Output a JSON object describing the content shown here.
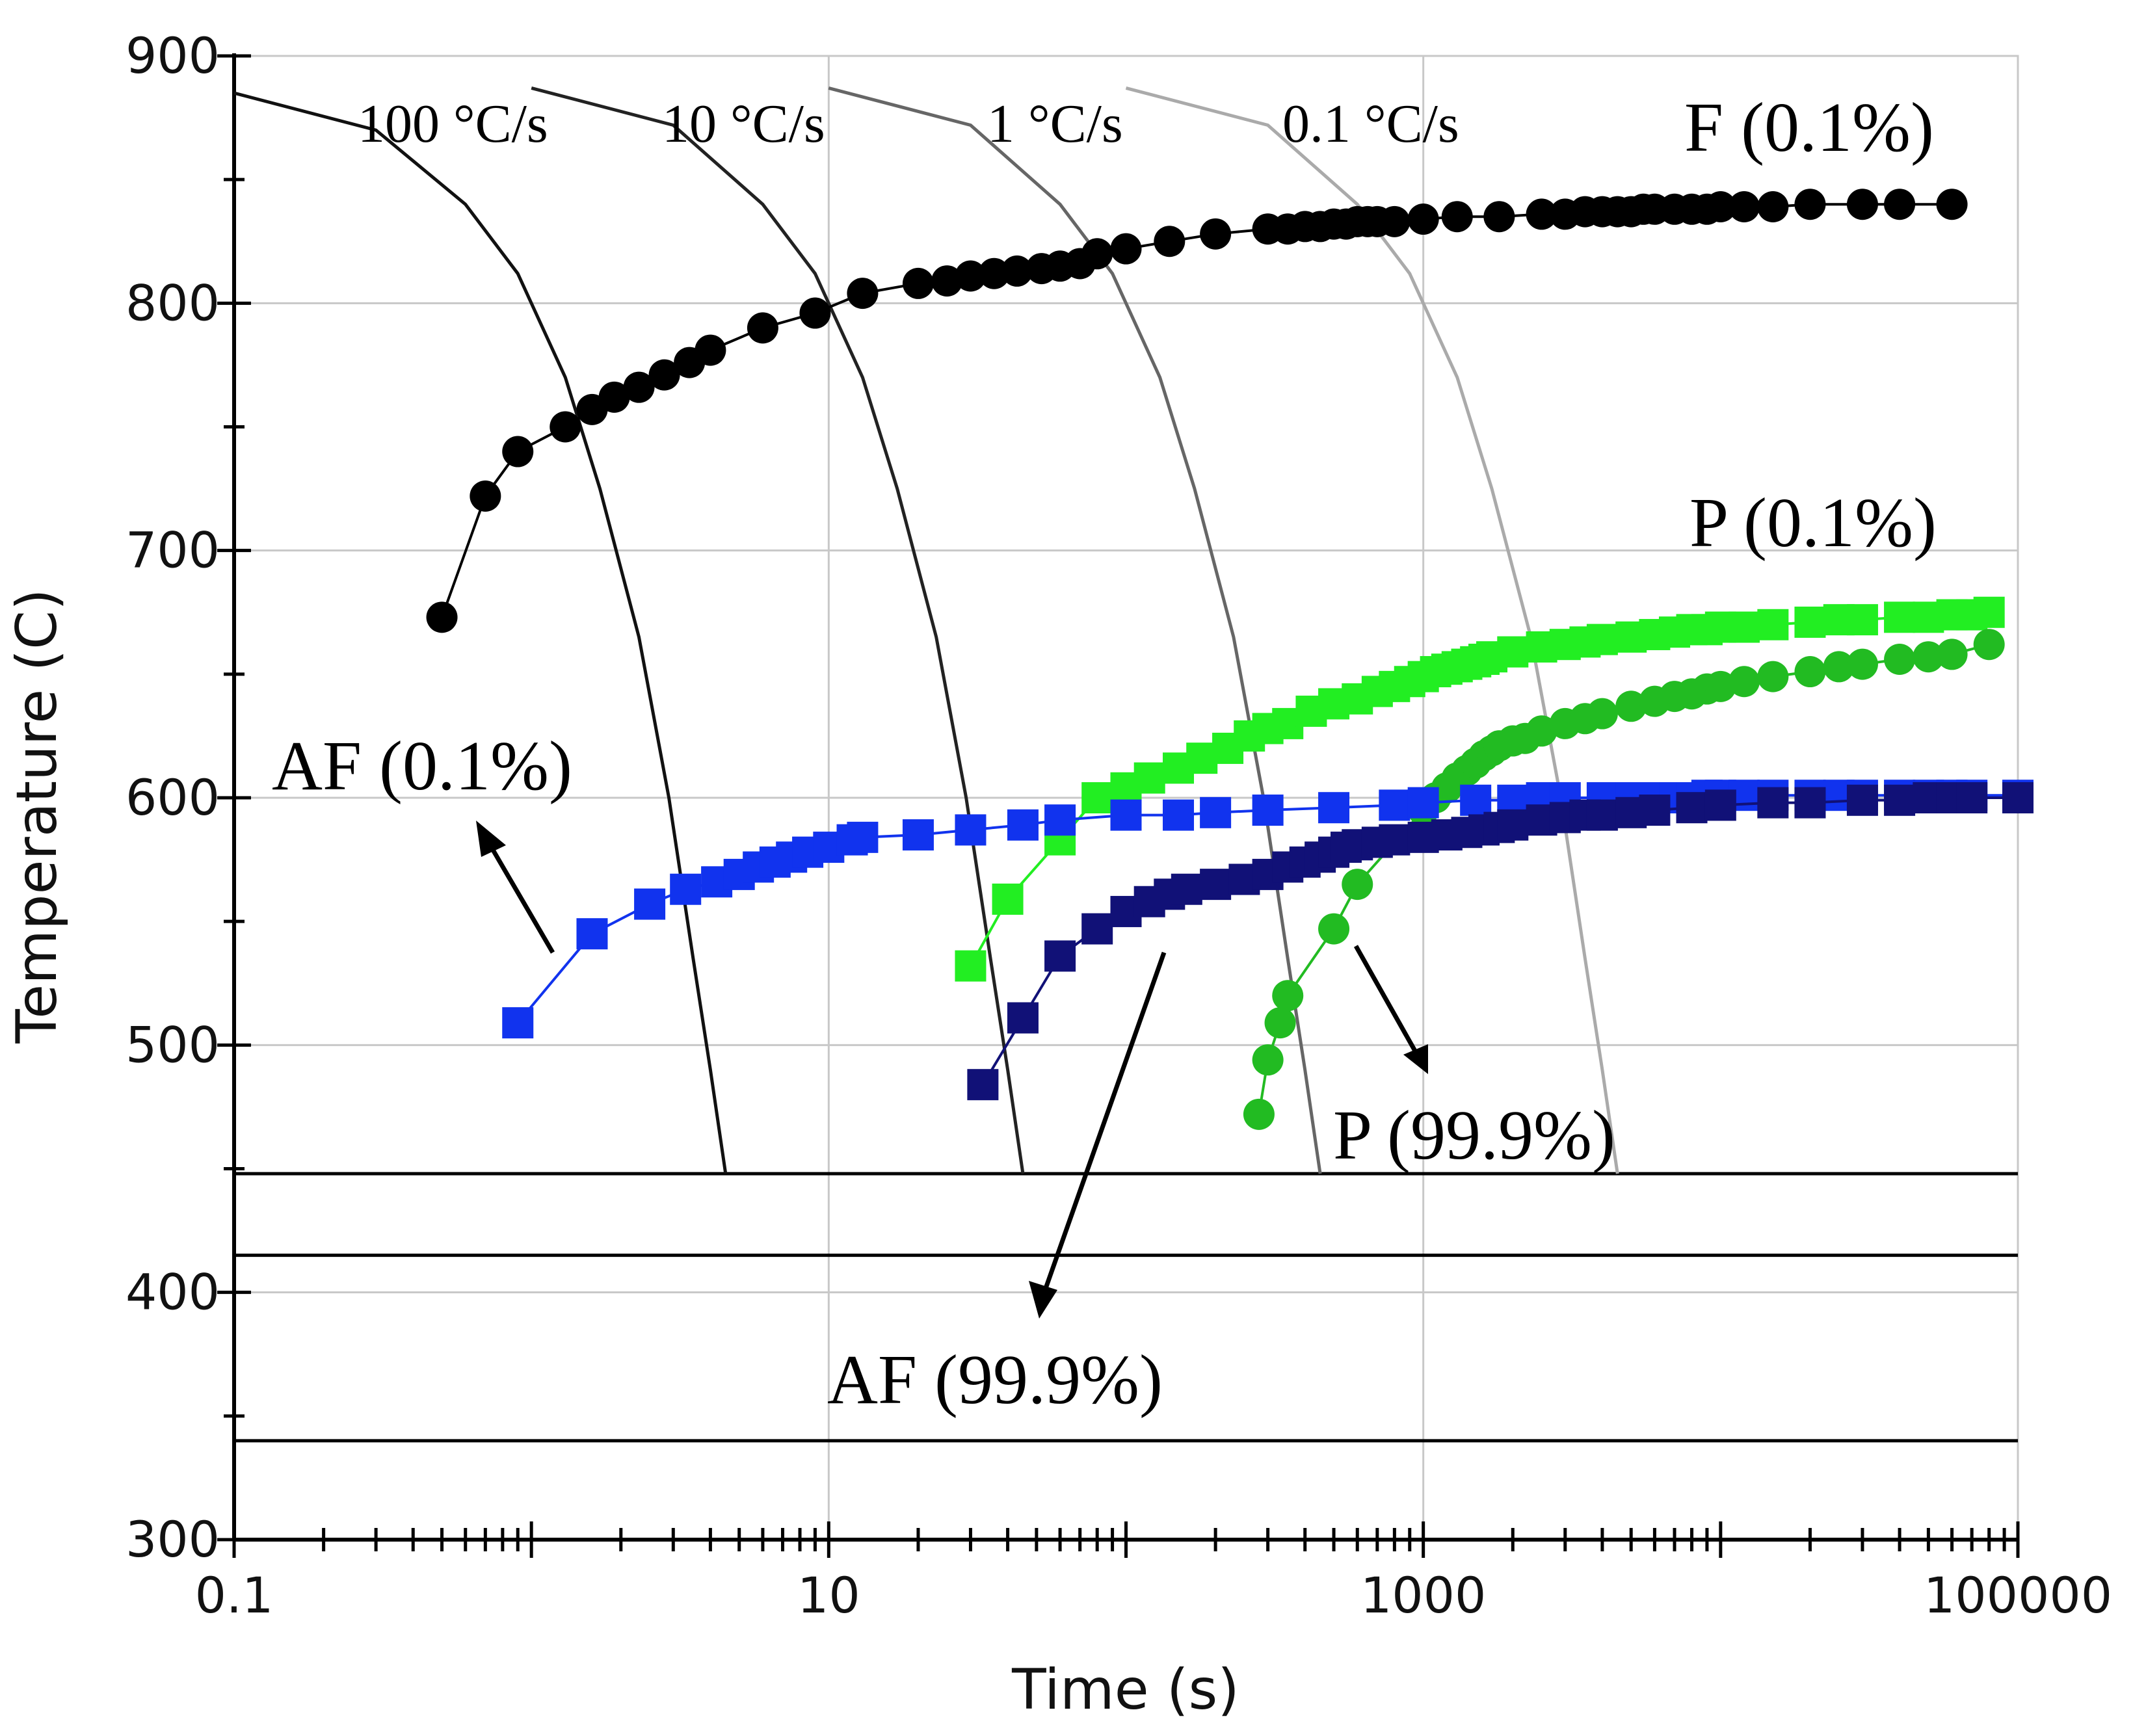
{
  "chart_data": {
    "type": "line",
    "title": "",
    "xlabel": "Time (s)",
    "ylabel": "Temperature (C)",
    "xscale": "log",
    "xlim": [
      0.1,
      100000
    ],
    "ylim": [
      300,
      900
    ],
    "grid": true,
    "xticks": [
      {
        "value": 0.1,
        "label": "0.1"
      },
      {
        "value": 10,
        "label": "10"
      },
      {
        "value": 1000,
        "label": "1000"
      },
      {
        "value": 100000,
        "label": "100000"
      }
    ],
    "yticks": [
      {
        "value": 300,
        "label": "300"
      },
      {
        "value": 400,
        "label": "400"
      },
      {
        "value": 500,
        "label": "500"
      },
      {
        "value": 600,
        "label": "600"
      },
      {
        "value": 700,
        "label": "700"
      },
      {
        "value": 800,
        "label": "800"
      },
      {
        "value": 900,
        "label": "900"
      }
    ],
    "reference_lines": [
      {
        "name": "temperature-line-448",
        "y": 448
      },
      {
        "name": "temperature-line-415",
        "y": 415
      },
      {
        "name": "temperature-line-340",
        "y": 340
      }
    ],
    "cooling_curves": [
      {
        "name": "100 °C/s",
        "color": "#111111",
        "points": [
          [
            0.1,
            885
          ],
          [
            0.3,
            870
          ],
          [
            0.6,
            840
          ],
          [
            0.9,
            812
          ],
          [
            1.3,
            770
          ],
          [
            1.7,
            725
          ],
          [
            2.3,
            665
          ],
          [
            2.9,
            600
          ],
          [
            3.5,
            535
          ],
          [
            4.0,
            490
          ],
          [
            4.5,
            448
          ]
        ]
      },
      {
        "name": "10 °C/s",
        "color": "#222222",
        "points": [
          [
            1,
            887
          ],
          [
            3,
            872
          ],
          [
            6,
            840
          ],
          [
            9,
            812
          ],
          [
            13,
            770
          ],
          [
            17,
            725
          ],
          [
            23,
            665
          ],
          [
            29,
            600
          ],
          [
            35,
            535
          ],
          [
            40,
            490
          ],
          [
            45,
            448
          ]
        ]
      },
      {
        "name": "1 °C/s",
        "color": "#666666",
        "points": [
          [
            10,
            887
          ],
          [
            30,
            872
          ],
          [
            60,
            840
          ],
          [
            90,
            812
          ],
          [
            130,
            770
          ],
          [
            170,
            725
          ],
          [
            230,
            665
          ],
          [
            290,
            600
          ],
          [
            350,
            535
          ],
          [
            400,
            490
          ],
          [
            450,
            448
          ]
        ]
      },
      {
        "name": "0.1 °C/s",
        "color": "#aaaaaa",
        "points": [
          [
            100,
            887
          ],
          [
            300,
            872
          ],
          [
            600,
            840
          ],
          [
            900,
            812
          ],
          [
            1300,
            770
          ],
          [
            1700,
            725
          ],
          [
            2300,
            665
          ],
          [
            2900,
            600
          ],
          [
            3500,
            535
          ],
          [
            4000,
            490
          ],
          [
            4500,
            448
          ]
        ]
      }
    ],
    "series": [
      {
        "name": "F (0.1%)",
        "color": "#000000",
        "marker": "circle",
        "x": [
          0.5,
          0.7,
          0.9,
          1.3,
          1.6,
          1.9,
          2.3,
          2.8,
          3.4,
          4,
          6,
          9,
          13,
          20,
          25,
          30,
          36,
          43,
          52,
          60,
          70,
          80,
          100,
          140,
          200,
          300,
          350,
          400,
          450,
          500,
          550,
          600,
          650,
          700,
          800,
          1000,
          1300,
          1800,
          2500,
          3000,
          3500,
          4000,
          4500,
          5000,
          5500,
          6000,
          7000,
          8000,
          9000,
          10000,
          12000,
          15000,
          20000,
          30000,
          40000,
          60000
        ],
        "y": [
          673,
          722,
          740,
          750,
          757,
          762,
          766,
          771,
          776,
          781,
          790,
          796,
          804,
          808,
          809,
          811,
          812,
          813,
          814,
          815,
          816,
          820,
          822,
          825,
          828,
          830,
          830,
          831,
          831,
          832,
          832,
          833,
          833,
          833,
          833,
          834,
          835,
          835,
          836,
          836,
          837,
          837,
          837,
          837,
          838,
          838,
          838,
          838,
          838,
          839,
          839,
          839,
          840,
          840,
          840,
          840
        ]
      },
      {
        "name": "P (0.1%)",
        "color": "#22ee22",
        "marker": "square",
        "x": [
          30,
          40,
          60,
          80,
          100,
          120,
          150,
          180,
          220,
          260,
          300,
          350,
          420,
          500,
          600,
          700,
          800,
          900,
          1000,
          1100,
          1200,
          1300,
          1400,
          1500,
          1600,
          1700,
          2000,
          2500,
          3000,
          3500,
          4000,
          5000,
          6000,
          7000,
          8000,
          9000,
          10000,
          12000,
          15000,
          20000,
          25000,
          30000,
          40000,
          50000,
          60000,
          70000,
          80000
        ],
        "y": [
          532,
          559,
          583,
          600,
          604,
          608,
          612,
          616,
          620,
          625,
          628,
          630,
          635,
          638,
          640,
          643,
          645,
          647,
          649,
          651,
          652,
          653,
          654,
          655,
          656,
          657,
          659,
          661,
          662,
          663,
          664,
          665,
          666,
          667,
          668,
          668,
          669,
          669,
          670,
          671,
          672,
          672,
          673,
          673,
          674,
          674,
          675
        ]
      },
      {
        "name": "P (99.9%)",
        "color": "#22bb22",
        "marker": "circle",
        "x": [
          280,
          300,
          330,
          350,
          500,
          600,
          1000,
          1100,
          1200,
          1300,
          1400,
          1500,
          1600,
          1700,
          1800,
          2000,
          2200,
          2500,
          3000,
          3500,
          4000,
          5000,
          6000,
          7000,
          8000,
          9000,
          10000,
          12000,
          15000,
          20000,
          25000,
          30000,
          40000,
          50000,
          60000,
          80000
        ],
        "y": [
          472,
          494,
          509,
          520,
          547,
          565,
          595,
          600,
          604,
          608,
          611,
          614,
          617,
          619,
          621,
          623,
          624,
          627,
          630,
          632,
          634,
          637,
          639,
          641,
          642,
          644,
          645,
          647,
          649,
          651,
          653,
          654,
          656,
          657,
          658,
          662
        ]
      },
      {
        "name": "AF (0.1%)",
        "color": "#1133ee",
        "marker": "square",
        "x": [
          0.9,
          1.6,
          2.5,
          3.3,
          4.2,
          5.0,
          5.8,
          6.6,
          7.5,
          8.5,
          10,
          12,
          13,
          20,
          30,
          45,
          60,
          100,
          150,
          200,
          300,
          500,
          800,
          1000,
          1500,
          2000,
          2500,
          3000,
          4000,
          5000,
          6000,
          7000,
          8000,
          9000,
          10000,
          12000,
          15000,
          20000,
          25000,
          30000,
          40000,
          50000,
          60000,
          70000,
          100000
        ],
        "y": [
          509,
          545,
          557,
          563,
          566,
          569,
          572,
          574,
          576,
          578,
          580,
          583,
          584,
          585,
          587,
          589,
          591,
          593,
          593,
          594,
          595,
          596,
          597,
          598,
          599,
          599,
          600,
          600,
          600,
          600,
          600,
          600,
          600,
          601,
          601,
          601,
          601,
          601,
          601,
          601,
          601,
          601,
          601,
          601,
          601
        ]
      },
      {
        "name": "AF (99.9%)",
        "color": "#111177",
        "marker": "square",
        "x": [
          33,
          45,
          60,
          80,
          100,
          120,
          140,
          160,
          200,
          250,
          300,
          350,
          400,
          450,
          500,
          550,
          600,
          700,
          800,
          1000,
          1200,
          1400,
          1600,
          1800,
          2000,
          2500,
          3000,
          3500,
          4000,
          5000,
          6000,
          8000,
          10000,
          15000,
          20000,
          30000,
          40000,
          50000,
          60000,
          70000,
          100000
        ],
        "y": [
          484,
          511,
          536,
          547,
          554,
          558,
          561,
          563,
          565,
          567,
          569,
          572,
          574,
          576,
          578,
          580,
          581,
          582,
          583,
          584,
          585,
          586,
          587,
          588,
          589,
          591,
          592,
          593,
          593,
          594,
          595,
          596,
          597,
          598,
          598,
          599,
          599,
          600,
          600,
          600,
          600
        ]
      }
    ],
    "annotations": [
      {
        "name": "rate-label-100",
        "text": "100 °C/s"
      },
      {
        "name": "rate-label-10",
        "text": "10 °C/s"
      },
      {
        "name": "rate-label-1",
        "text": "1 °C/s"
      },
      {
        "name": "rate-label-01",
        "text": "0.1 °C/s"
      },
      {
        "name": "label-f-01",
        "text": "F (0.1%)"
      },
      {
        "name": "label-p-01",
        "text": "P (0.1%)"
      },
      {
        "name": "label-af-01",
        "text": "AF (0.1%)"
      },
      {
        "name": "label-p-999",
        "text": "P (99.9%)"
      },
      {
        "name": "label-af-999",
        "text": "AF (99.9%)"
      }
    ]
  }
}
